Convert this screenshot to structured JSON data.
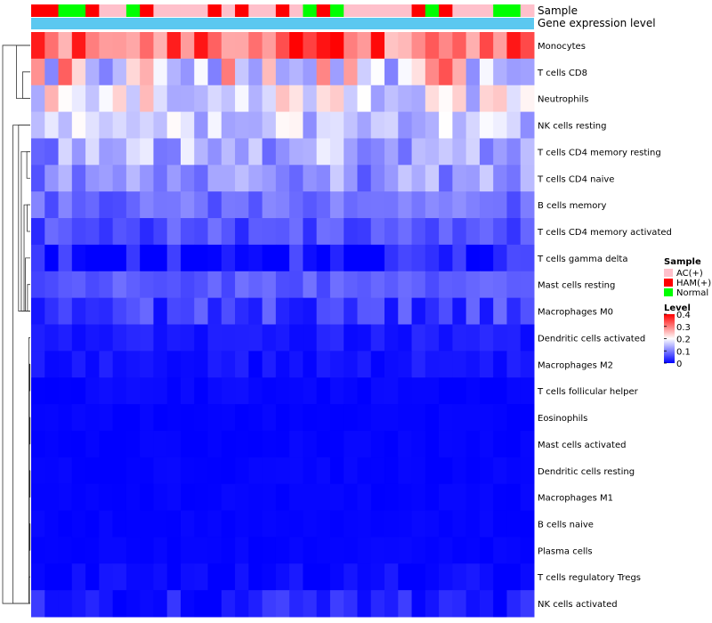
{
  "chart_data": {
    "type": "heatmap",
    "annotation_bars": [
      {
        "name": "Sample",
        "label": "Sample"
      },
      {
        "name": "Gene expression level",
        "label": "Gene expression level"
      }
    ],
    "sample_groups": [
      "HAM",
      "HAM",
      "Normal",
      "Normal",
      "HAM",
      "AC",
      "AC",
      "Normal",
      "HAM",
      "AC",
      "AC",
      "AC",
      "AC",
      "HAM",
      "AC",
      "HAM",
      "AC",
      "AC",
      "HAM",
      "AC",
      "Normal",
      "HAM",
      "Normal",
      "AC",
      "AC",
      "AC",
      "AC",
      "AC",
      "HAM",
      "Normal",
      "HAM",
      "AC",
      "AC",
      "AC",
      "Normal",
      "Normal",
      "AC"
    ],
    "sample_legend": {
      "title": "Sample",
      "entries": [
        {
          "label": "AC(+)",
          "key": "AC",
          "color": "#ffc0cb"
        },
        {
          "label": "HAM(+)",
          "key": "HAM",
          "color": "#ff0000"
        },
        {
          "label": "Normal",
          "key": "Normal",
          "color": "#00ff00"
        }
      ]
    },
    "expression_bar_color": "#5bc8f0",
    "color_scale": {
      "title": "Level",
      "min": 0,
      "max": 0.4,
      "low": "#0000ff",
      "mid": "#ffffff",
      "high": "#ff0000",
      "mid_value": 0.2,
      "ticks": [
        "0.4",
        "0.3",
        "0.2",
        "0.1",
        "0"
      ],
      "tick_values": [
        0.4,
        0.3,
        0.2,
        0.1,
        0
      ]
    },
    "rows": [
      "Monocytes",
      "T cells CD8",
      "Neutrophils",
      "NK cells resting",
      "T cells CD4 memory resting",
      "T cells CD4 naive",
      "B cells memory",
      "T cells CD4 memory activated",
      "T cells gamma delta",
      "Mast cells resting",
      "Macrophages M0",
      "Dendritic cells activated",
      "Macrophages M2",
      "T cells follicular helper",
      "Eosinophils",
      "Mast cells activated",
      "Dendritic cells resting",
      "Macrophages M1",
      "B cells naive",
      "Plasma cells",
      "T cells regulatory  Tregs",
      "NK cells activated"
    ],
    "row_means": [
      0.32,
      0.22,
      0.19,
      0.16,
      0.13,
      0.11,
      0.085,
      0.06,
      0.02,
      0.07,
      0.05,
      0.02,
      0.015,
      0.005,
      0.003,
      0.003,
      0.003,
      0.003,
      0.003,
      0.003,
      0.006,
      0.02
    ],
    "row_spread": [
      0.08,
      0.12,
      0.07,
      0.05,
      0.06,
      0.05,
      0.03,
      0.03,
      0.04,
      0.02,
      0.04,
      0.015,
      0.015,
      0.008,
      0.004,
      0.004,
      0.004,
      0.004,
      0.004,
      0.004,
      0.015,
      0.035
    ],
    "row_dendrogram": [
      [
        12,
        13,
        0.004
      ],
      [
        14,
        15,
        0.003
      ],
      [
        16,
        17,
        0.003
      ],
      [
        18,
        19,
        0.003
      ],
      [
        20,
        21,
        0.018
      ],
      [
        12,
        21,
        0.012
      ],
      [
        11,
        21,
        0.02
      ],
      [
        4,
        5,
        0.05
      ],
      [
        6,
        7,
        0.045
      ],
      [
        9,
        10,
        0.04
      ],
      [
        8,
        10,
        0.07
      ],
      [
        6,
        10,
        0.09
      ],
      [
        4,
        10,
        0.13
      ],
      [
        3,
        10,
        0.17
      ],
      [
        3,
        21,
        0.25
      ],
      [
        1,
        2,
        0.11
      ],
      [
        0,
        2,
        0.2
      ],
      [
        0,
        21,
        0.4
      ]
    ]
  }
}
